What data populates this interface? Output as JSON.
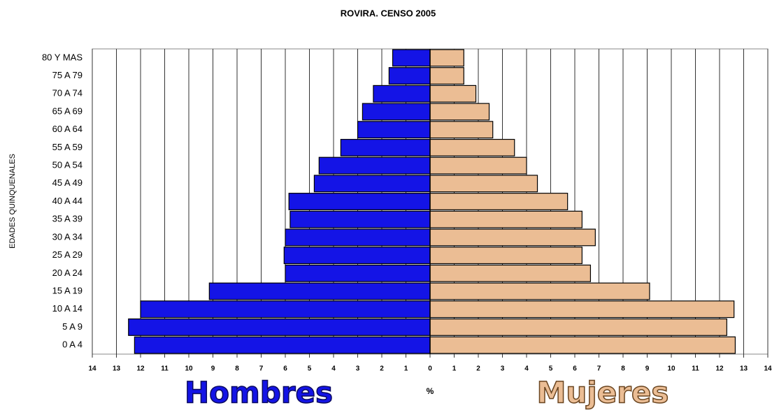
{
  "chart_data": {
    "type": "pyramid",
    "title": "ROVIRA. CENSO 2005",
    "y_label": "EDADES QUINQUENALES",
    "x_label": "%",
    "categories": [
      "80 Y MAS",
      "75 A 79",
      "70 A 74",
      "65 A 69",
      "60 A 64",
      "55 A 59",
      "50 A 54",
      "45 A 49",
      "40 A 44",
      "35 A 39",
      "30 A 34",
      "25 A 29",
      "20 A 24",
      "15 A 19",
      "10 A 14",
      "5 A 9",
      "0 A 4"
    ],
    "series": [
      {
        "name": "Hombres",
        "color": "#1414e6",
        "side": "left",
        "values": [
          1.55,
          1.7,
          2.35,
          2.8,
          3.0,
          3.7,
          4.6,
          4.8,
          5.85,
          5.8,
          6.0,
          6.05,
          6.0,
          9.15,
          12.0,
          12.5,
          12.25
        ]
      },
      {
        "name": "Mujeres",
        "color": "#ebbd94",
        "side": "right",
        "values": [
          1.4,
          1.4,
          1.9,
          2.45,
          2.6,
          3.5,
          4.0,
          4.45,
          5.7,
          6.3,
          6.85,
          6.3,
          6.65,
          9.1,
          12.6,
          12.3,
          12.65
        ]
      }
    ],
    "xlim": [
      -14,
      14
    ],
    "xticks": [
      {
        "value": -14,
        "label": "14"
      },
      {
        "value": -13,
        "label": "13"
      },
      {
        "value": -12,
        "label": "12"
      },
      {
        "value": -11,
        "label": "11"
      },
      {
        "value": -10,
        "label": "10"
      },
      {
        "value": -9,
        "label": "9"
      },
      {
        "value": -8,
        "label": "8"
      },
      {
        "value": -7,
        "label": "7"
      },
      {
        "value": -6,
        "label": "6"
      },
      {
        "value": -5,
        "label": "5"
      },
      {
        "value": -4,
        "label": "4"
      },
      {
        "value": -3,
        "label": "3"
      },
      {
        "value": -2,
        "label": "2"
      },
      {
        "value": -1,
        "label": "1"
      },
      0,
      1,
      2,
      3,
      4,
      5,
      6,
      7,
      8,
      9,
      10,
      11,
      12,
      13,
      14
    ],
    "grid": true
  }
}
